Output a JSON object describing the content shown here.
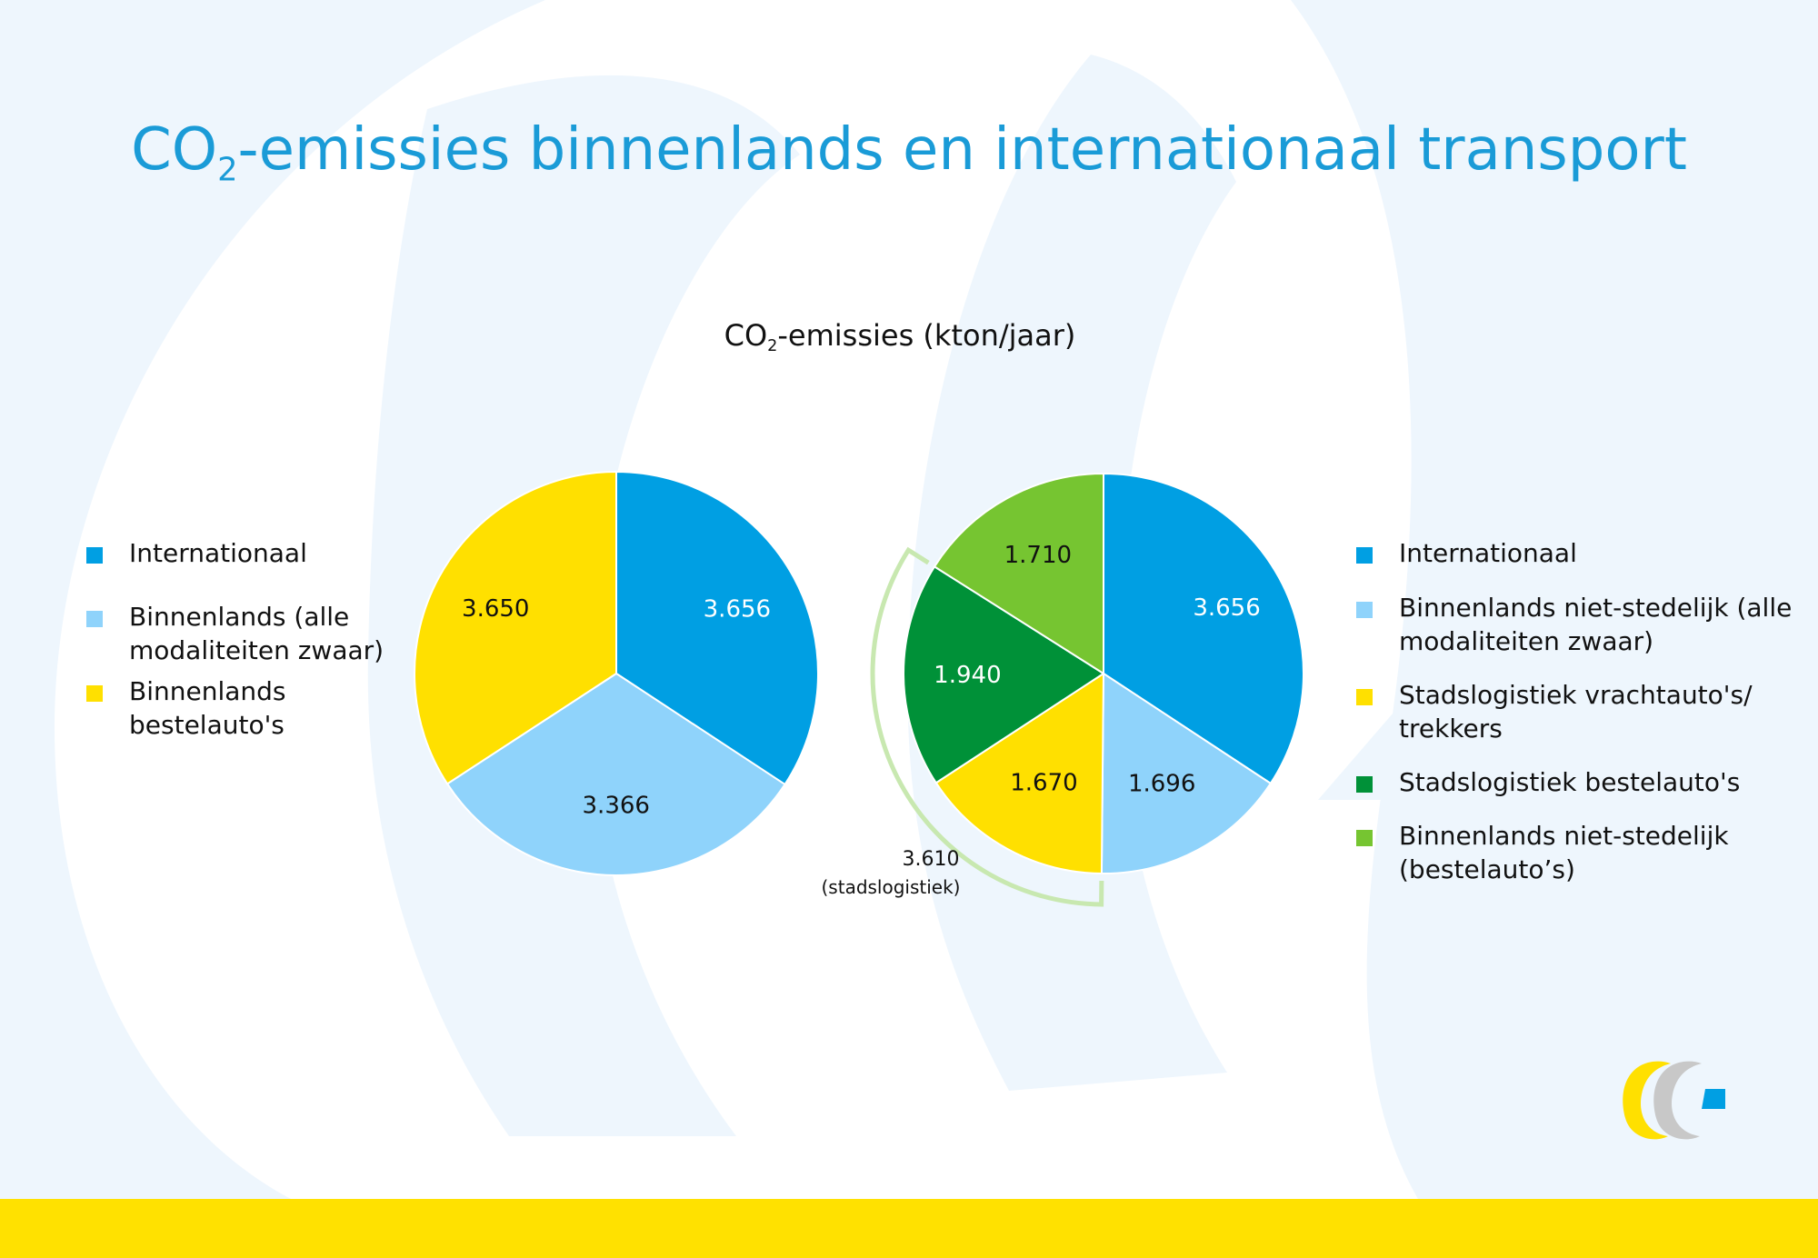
{
  "slide": {
    "title_main": "CO",
    "title_sub": "2",
    "title_rest": "-emissies binnenlands en internationaal transport",
    "subtitle_main": "CO",
    "subtitle_sub": "2",
    "subtitle_rest": "-emissies (kton/jaar)"
  },
  "colors": {
    "international": "#009fe3",
    "domestic_heavy": "#8fd3fb",
    "vans_yellow": "#ffe000",
    "city_vans_darkgreen": "#009138",
    "light_green": "#76c531",
    "title_blue": "#1a9bd7",
    "band_yellow": "#ffe100"
  },
  "chart_data": [
    {
      "type": "pie",
      "slices": [
        {
          "label": "Internationaal",
          "value": 3656,
          "display": "3.656",
          "color": "#009fe3",
          "label_color": "#ffffff"
        },
        {
          "label": "Binnenlands (alle modaliteiten zwaar)",
          "value": 3366,
          "display": "3.366",
          "color": "#8fd3fb",
          "label_color": "#111111"
        },
        {
          "label": "Binnenlands bestelauto's",
          "value": 3650,
          "display": "3.650",
          "color": "#ffe000",
          "label_color": "#111111"
        }
      ],
      "legend": [
        "Internationaal",
        "Binnenlands (alle modaliteiten zwaar)",
        "Binnenlands bestelauto's"
      ],
      "legend_placement": "left"
    },
    {
      "type": "pie",
      "slices": [
        {
          "label": "Internationaal",
          "value": 3656,
          "display": "3.656",
          "color": "#009fe3",
          "label_color": "#ffffff"
        },
        {
          "label": "Binnenlands niet-stedelijk (alle modaliteiten zwaar)",
          "value": 1696,
          "display": "1.696",
          "color": "#8fd3fb",
          "label_color": "#111111"
        },
        {
          "label": "Stadslogistiek vrachtauto's/ trekkers",
          "value": 1670,
          "display": "1.670",
          "color": "#ffe000",
          "label_color": "#111111"
        },
        {
          "label": "Stadslogistiek bestelauto's",
          "value": 1940,
          "display": "1.940",
          "color": "#009138",
          "label_color": "#ffffff"
        },
        {
          "label": "Binnenlands niet-stedelijk (bestelauto’s)",
          "value": 1710,
          "display": "1.710",
          "color": "#76c531",
          "label_color": "#111111"
        }
      ],
      "annotation": {
        "value": "3.610",
        "text": "(stadslogistiek)"
      },
      "legend": [
        "Internationaal",
        "Binnenlands niet-stedelijk (alle modaliteiten zwaar)",
        "Stadslogistiek vrachtauto's/ trekkers",
        "Stadslogistiek bestelauto's",
        "Binnenlands niet-stedelijk (bestelauto’s)"
      ],
      "legend_placement": "right"
    }
  ]
}
